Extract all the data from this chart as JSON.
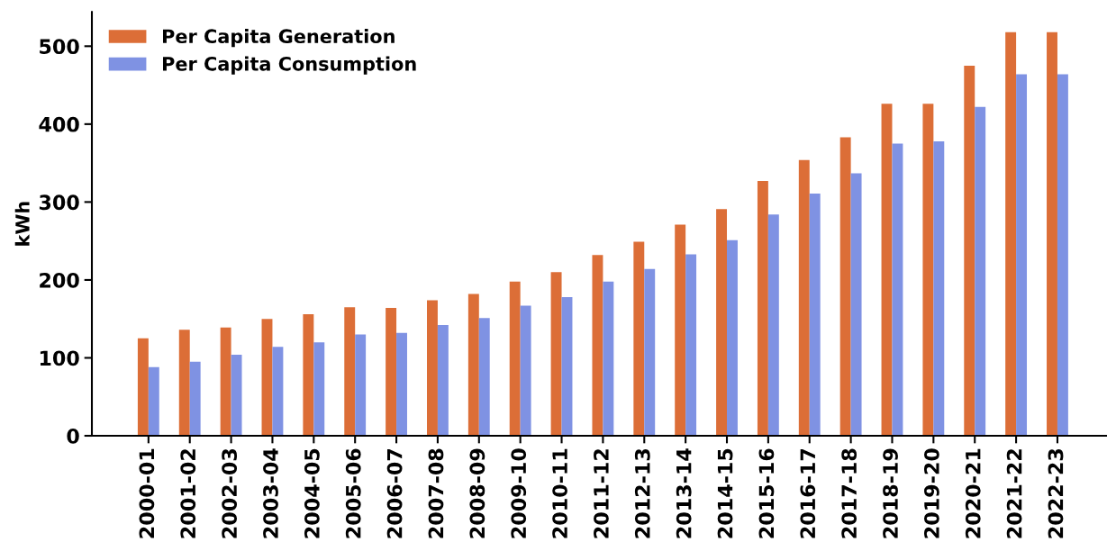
{
  "chart_data": {
    "type": "bar",
    "ylabel": "kWh",
    "categories": [
      "2000-01",
      "2001-02",
      "2002-03",
      "2003-04",
      "2004-05",
      "2005-06",
      "2006-07",
      "2007-08",
      "2008-09",
      "2009-10",
      "2010-11",
      "2011-12",
      "2012-13",
      "2013-14",
      "2014-15",
      "2015-16",
      "2016-17",
      "2017-18",
      "2018-19",
      "2019-20",
      "2020-21",
      "2021-22",
      "2022-23"
    ],
    "series": [
      {
        "name": "Per Capita Generation",
        "color": "#dc6e37",
        "values": [
          125,
          136,
          139,
          150,
          156,
          165,
          164,
          174,
          182,
          198,
          210,
          232,
          249,
          271,
          291,
          327,
          354,
          383,
          426,
          426,
          475,
          518,
          518
        ]
      },
      {
        "name": "Per Capita Consumption",
        "color": "#7f92e3",
        "values": [
          88,
          95,
          104,
          114,
          120,
          130,
          132,
          142,
          151,
          167,
          178,
          198,
          214,
          233,
          251,
          284,
          311,
          337,
          375,
          378,
          422,
          464,
          464
        ]
      }
    ],
    "ylim": [
      0,
      544
    ],
    "yticks": [
      0,
      100,
      200,
      300,
      400,
      500
    ],
    "grid": false,
    "legend": "top left"
  }
}
